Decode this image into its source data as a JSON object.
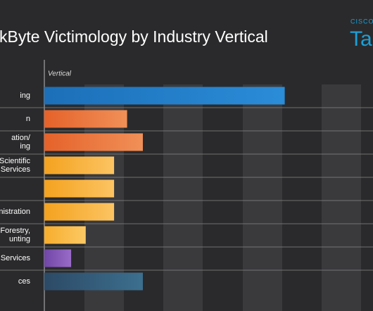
{
  "chart_data": {
    "type": "bar",
    "orientation": "horizontal",
    "title": "kByte Victimology by Industry Vertical",
    "logo": {
      "brand": "CISCO",
      "name": "Ta"
    },
    "axis_label": "Vertical",
    "categories": [
      [
        "ing"
      ],
      [
        "n"
      ],
      [
        "ation/",
        "ing"
      ],
      [
        "l, Scientific",
        "Services"
      ],
      null,
      [
        "inistration"
      ],
      [
        "Forestry,",
        "unting"
      ],
      [
        "Services"
      ],
      [
        "ces"
      ]
    ],
    "values": [
      6.1,
      2.1,
      2.5,
      1.77,
      1.77,
      1.77,
      1.05,
      0.68,
      2.5
    ],
    "colors": [
      [
        "#1c6fb8",
        "#2b8cd8"
      ],
      [
        "#e5622a",
        "#f09058"
      ],
      [
        "#e5622a",
        "#f09058"
      ],
      [
        "#f4a21f",
        "#fcc462"
      ],
      [
        "#f4a21f",
        "#fcc462"
      ],
      [
        "#f4a21f",
        "#fcc462"
      ],
      [
        "#f7ad2c",
        "#fcc965"
      ],
      [
        "#6f45a6",
        "#9a6cc8"
      ],
      [
        "#2c4a66",
        "#3c6f8e"
      ]
    ],
    "xlim": [
      0,
      8.34
    ]
  }
}
